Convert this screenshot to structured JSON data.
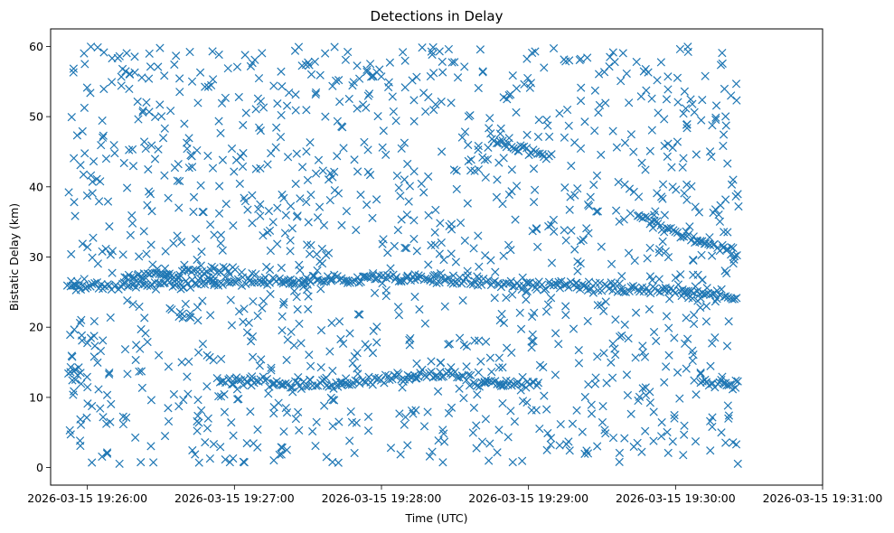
{
  "chart_data": {
    "type": "scatter",
    "title": "Detections in Delay",
    "xlabel": "Time (UTC)",
    "ylabel": "Bistatic Delay (km)",
    "marker": "x",
    "marker_color": "#1f77b4",
    "grid": false,
    "legend": "none",
    "xlim": [
      "2026-03-15 19:25:45",
      "2026-03-15 19:31:00"
    ],
    "ylim": [
      -2.5,
      62.5
    ],
    "x_tick_labels": [
      "2026-03-15 19:26:00",
      "2026-03-15 19:27:00",
      "2026-03-15 19:28:00",
      "2026-03-15 19:29:00",
      "2026-03-15 19:30:00",
      "2026-03-15 19:31:00"
    ],
    "y_tick_labels": [
      "0",
      "10",
      "20",
      "30",
      "40",
      "50",
      "60"
    ],
    "data_span": [
      "2026-03-15 19:25:52",
      "2026-03-15 19:30:26"
    ],
    "tracks": [
      {
        "points": [
          [
            "19:25:52",
            25.8
          ],
          [
            "19:26:30",
            26.2
          ],
          [
            "19:27:00",
            26.5
          ],
          [
            "19:27:30",
            26.5
          ],
          [
            "19:28:00",
            27.2
          ],
          [
            "19:28:30",
            26.8
          ],
          [
            "19:29:00",
            26.0
          ],
          [
            "19:29:30",
            25.8
          ],
          [
            "19:30:00",
            25.1
          ],
          [
            "19:30:26",
            24.3
          ]
        ]
      },
      {
        "points": [
          [
            "19:26:15",
            27.2
          ],
          [
            "19:26:30",
            27.5
          ],
          [
            "19:26:45",
            27.8
          ],
          [
            "19:27:00",
            28.0
          ]
        ]
      },
      {
        "points": [
          [
            "19:26:53",
            12.2
          ],
          [
            "19:27:08",
            12.6
          ],
          [
            "19:27:22",
            11.9
          ],
          [
            "19:27:45",
            11.8
          ]
        ]
      },
      {
        "points": [
          [
            "19:27:45",
            11.8
          ],
          [
            "19:28:00",
            12.6
          ],
          [
            "19:28:15",
            13.0
          ],
          [
            "19:28:30",
            13.4
          ],
          [
            "19:28:40",
            12.0
          ],
          [
            "19:29:05",
            12.0
          ]
        ]
      },
      {
        "points": [
          [
            "19:28:45",
            46.5
          ],
          [
            "19:29:00",
            45.0
          ],
          [
            "19:29:10",
            44.0
          ]
        ]
      },
      {
        "points": [
          [
            "19:29:45",
            36.0
          ],
          [
            "19:30:00",
            33.5
          ],
          [
            "19:30:26",
            30.5
          ]
        ]
      },
      {
        "points": [
          [
            "19:30:10",
            12.0
          ],
          [
            "19:30:26",
            12.0
          ]
        ]
      },
      {
        "points": [
          [
            "19:25:52",
            13.5
          ],
          [
            "19:25:58",
            13.0
          ]
        ]
      }
    ]
  }
}
